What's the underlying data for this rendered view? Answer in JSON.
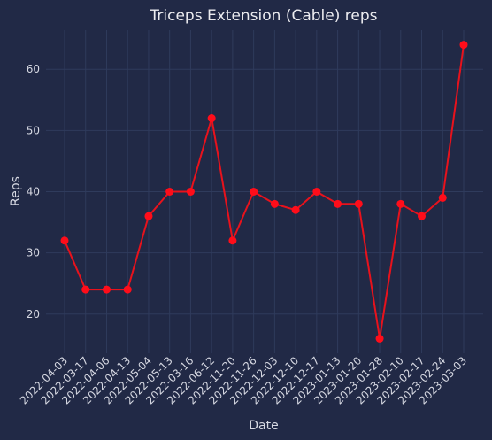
{
  "chart_data": {
    "type": "line",
    "title": "Triceps Extension (Cable) reps",
    "xlabel": "Date",
    "ylabel": "Reps",
    "x": [
      "2022-04-03",
      "2022-03-17",
      "2022-04-06",
      "2022-04-13",
      "2022-05-04",
      "2022-05-13",
      "2022-03-16",
      "2022-06-12",
      "2022-11-20",
      "2022-11-26",
      "2022-12-03",
      "2022-12-10",
      "2022-12-17",
      "2023-01-13",
      "2023-01-20",
      "2023-01-28",
      "2023-02-10",
      "2023-02-17",
      "2023-02-24",
      "2023-03-03"
    ],
    "series": [
      {
        "values": [
          32,
          24,
          24,
          24,
          36,
          40,
          40,
          52,
          32,
          40,
          38,
          37,
          40,
          38,
          38,
          16,
          38,
          36,
          39,
          64
        ]
      }
    ],
    "yticks": [
      20,
      30,
      40,
      50,
      60
    ],
    "ylim": [
      13.6,
      66.4
    ],
    "grid": true,
    "colors": {
      "background": "#212946",
      "grid": "#2f3b5c",
      "line": "#e8121c",
      "marker": "#ff0d1a"
    }
  }
}
